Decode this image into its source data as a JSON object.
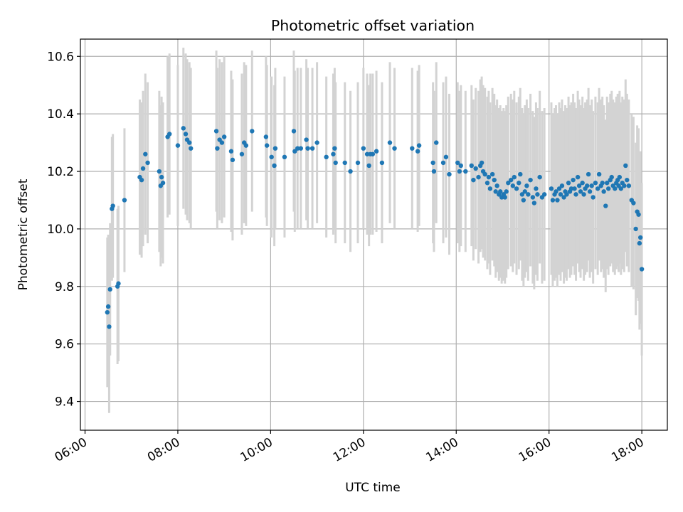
{
  "chart_data": {
    "type": "scatter",
    "title": "Photometric offset variation",
    "xlabel": "UTC time",
    "ylabel": "Photometric offset",
    "x_unit": "hours UTC",
    "xlim": [
      5.9,
      18.55
    ],
    "ylim": [
      9.3,
      10.66
    ],
    "x_ticks": [
      6,
      8,
      10,
      12,
      14,
      16,
      18
    ],
    "x_tick_labels": [
      "06:00",
      "08:00",
      "10:00",
      "12:00",
      "14:00",
      "16:00",
      "18:00"
    ],
    "y_ticks": [
      9.4,
      9.6,
      9.8,
      10.0,
      10.2,
      10.4,
      10.6
    ],
    "y_tick_labels": [
      "9.4",
      "9.6",
      "9.8",
      "10.0",
      "10.2",
      "10.4",
      "10.6"
    ],
    "grid": true,
    "legend": "none",
    "colors": {
      "points": "#1f77b4",
      "errorbars": "#d3d3d3",
      "grid": "#b0b0b0"
    },
    "series": [
      {
        "marker": "dot",
        "errorbar": true,
        "points": [
          [
            6.48,
            9.71,
            0.26
          ],
          [
            6.5,
            9.73,
            0.25
          ],
          [
            6.52,
            9.66,
            0.3
          ],
          [
            6.54,
            9.79,
            0.23
          ],
          [
            6.58,
            10.07,
            0.25
          ],
          [
            6.6,
            10.08,
            0.25
          ],
          [
            6.7,
            9.8,
            0.27
          ],
          [
            6.72,
            9.81,
            0.27
          ],
          [
            6.85,
            10.1,
            0.25
          ],
          [
            7.18,
            10.18,
            0.27
          ],
          [
            7.22,
            10.17,
            0.27
          ],
          [
            7.25,
            10.21,
            0.27
          ],
          [
            7.3,
            10.26,
            0.28
          ],
          [
            7.35,
            10.23,
            0.28
          ],
          [
            7.6,
            10.2,
            0.28
          ],
          [
            7.63,
            10.15,
            0.28
          ],
          [
            7.65,
            10.18,
            0.28
          ],
          [
            7.68,
            10.16,
            0.28
          ],
          [
            7.78,
            10.32,
            0.28
          ],
          [
            7.82,
            10.33,
            0.28
          ],
          [
            8.0,
            10.29,
            0.28
          ],
          [
            8.12,
            10.35,
            0.28
          ],
          [
            8.17,
            10.33,
            0.28
          ],
          [
            8.2,
            10.31,
            0.28
          ],
          [
            8.25,
            10.3,
            0.28
          ],
          [
            8.28,
            10.28,
            0.28
          ],
          [
            8.83,
            10.34,
            0.28
          ],
          [
            8.85,
            10.28,
            0.28
          ],
          [
            8.9,
            10.31,
            0.28
          ],
          [
            8.95,
            10.3,
            0.28
          ],
          [
            9.0,
            10.32,
            0.28
          ],
          [
            9.15,
            10.27,
            0.28
          ],
          [
            9.18,
            10.24,
            0.28
          ],
          [
            9.38,
            10.26,
            0.28
          ],
          [
            9.43,
            10.3,
            0.28
          ],
          [
            9.47,
            10.29,
            0.28
          ],
          [
            9.6,
            10.34,
            0.28
          ],
          [
            9.9,
            10.32,
            0.28
          ],
          [
            9.92,
            10.29,
            0.28
          ],
          [
            10.02,
            10.25,
            0.28
          ],
          [
            10.08,
            10.22,
            0.28
          ],
          [
            10.1,
            10.28,
            0.28
          ],
          [
            10.3,
            10.25,
            0.28
          ],
          [
            10.5,
            10.34,
            0.28
          ],
          [
            10.52,
            10.27,
            0.28
          ],
          [
            10.58,
            10.28,
            0.28
          ],
          [
            10.65,
            10.28,
            0.28
          ],
          [
            10.77,
            10.31,
            0.28
          ],
          [
            10.8,
            10.28,
            0.28
          ],
          [
            10.9,
            10.28,
            0.28
          ],
          [
            11.0,
            10.3,
            0.28
          ],
          [
            11.2,
            10.25,
            0.28
          ],
          [
            11.35,
            10.26,
            0.28
          ],
          [
            11.38,
            10.28,
            0.28
          ],
          [
            11.4,
            10.23,
            0.28
          ],
          [
            11.6,
            10.23,
            0.28
          ],
          [
            11.72,
            10.2,
            0.28
          ],
          [
            11.88,
            10.23,
            0.28
          ],
          [
            12.0,
            10.28,
            0.28
          ],
          [
            12.08,
            10.26,
            0.28
          ],
          [
            12.12,
            10.22,
            0.28
          ],
          [
            12.15,
            10.26,
            0.28
          ],
          [
            12.2,
            10.26,
            0.28
          ],
          [
            12.28,
            10.27,
            0.28
          ],
          [
            12.4,
            10.23,
            0.28
          ],
          [
            12.57,
            10.3,
            0.28
          ],
          [
            12.67,
            10.28,
            0.28
          ],
          [
            13.05,
            10.28,
            0.28
          ],
          [
            13.17,
            10.27,
            0.28
          ],
          [
            13.2,
            10.29,
            0.28
          ],
          [
            13.5,
            10.23,
            0.28
          ],
          [
            13.52,
            10.2,
            0.28
          ],
          [
            13.57,
            10.3,
            0.28
          ],
          [
            13.72,
            10.23,
            0.28
          ],
          [
            13.78,
            10.25,
            0.28
          ],
          [
            13.85,
            10.19,
            0.28
          ],
          [
            14.03,
            10.23,
            0.28
          ],
          [
            14.07,
            10.2,
            0.28
          ],
          [
            14.1,
            10.22,
            0.28
          ],
          [
            14.2,
            10.2,
            0.28
          ],
          [
            14.33,
            10.22,
            0.28
          ],
          [
            14.37,
            10.17,
            0.28
          ],
          [
            14.42,
            10.21,
            0.28
          ],
          [
            14.48,
            10.18,
            0.3
          ],
          [
            14.52,
            10.22,
            0.3
          ],
          [
            14.55,
            10.23,
            0.3
          ],
          [
            14.58,
            10.2,
            0.3
          ],
          [
            14.62,
            10.19,
            0.3
          ],
          [
            14.67,
            10.16,
            0.3
          ],
          [
            14.7,
            10.18,
            0.3
          ],
          [
            14.73,
            10.14,
            0.3
          ],
          [
            14.78,
            10.19,
            0.3
          ],
          [
            14.82,
            10.17,
            0.3
          ],
          [
            14.85,
            10.13,
            0.3
          ],
          [
            14.88,
            10.15,
            0.3
          ],
          [
            14.92,
            10.12,
            0.3
          ],
          [
            14.95,
            10.13,
            0.3
          ],
          [
            14.98,
            10.11,
            0.3
          ],
          [
            15.02,
            10.12,
            0.3
          ],
          [
            15.05,
            10.11,
            0.3
          ],
          [
            15.08,
            10.13,
            0.3
          ],
          [
            15.12,
            10.16,
            0.3
          ],
          [
            15.18,
            10.17,
            0.3
          ],
          [
            15.22,
            10.15,
            0.3
          ],
          [
            15.25,
            10.18,
            0.3
          ],
          [
            15.3,
            10.14,
            0.3
          ],
          [
            15.35,
            10.16,
            0.3
          ],
          [
            15.38,
            10.19,
            0.3
          ],
          [
            15.42,
            10.12,
            0.3
          ],
          [
            15.45,
            10.1,
            0.3
          ],
          [
            15.48,
            10.13,
            0.3
          ],
          [
            15.52,
            10.15,
            0.3
          ],
          [
            15.55,
            10.12,
            0.3
          ],
          [
            15.6,
            10.17,
            0.3
          ],
          [
            15.65,
            10.11,
            0.3
          ],
          [
            15.68,
            10.09,
            0.3
          ],
          [
            15.72,
            10.14,
            0.3
          ],
          [
            15.75,
            10.12,
            0.3
          ],
          [
            15.8,
            10.18,
            0.3
          ],
          [
            15.85,
            10.11,
            0.3
          ],
          [
            15.9,
            10.12,
            0.3
          ],
          [
            16.05,
            10.14,
            0.3
          ],
          [
            16.08,
            10.1,
            0.3
          ],
          [
            16.12,
            10.12,
            0.3
          ],
          [
            16.15,
            10.13,
            0.3
          ],
          [
            16.18,
            10.1,
            0.3
          ],
          [
            16.22,
            10.14,
            0.3
          ],
          [
            16.25,
            10.12,
            0.3
          ],
          [
            16.28,
            10.15,
            0.3
          ],
          [
            16.32,
            10.11,
            0.3
          ],
          [
            16.35,
            10.13,
            0.3
          ],
          [
            16.38,
            10.12,
            0.3
          ],
          [
            16.42,
            10.16,
            0.3
          ],
          [
            16.45,
            10.13,
            0.3
          ],
          [
            16.48,
            10.14,
            0.3
          ],
          [
            16.52,
            10.17,
            0.3
          ],
          [
            16.55,
            10.14,
            0.3
          ],
          [
            16.58,
            10.12,
            0.3
          ],
          [
            16.62,
            10.18,
            0.3
          ],
          [
            16.65,
            10.15,
            0.3
          ],
          [
            16.68,
            10.13,
            0.3
          ],
          [
            16.72,
            10.16,
            0.3
          ],
          [
            16.75,
            10.12,
            0.3
          ],
          [
            16.78,
            10.14,
            0.3
          ],
          [
            16.82,
            10.15,
            0.3
          ],
          [
            16.85,
            10.19,
            0.3
          ],
          [
            16.88,
            10.13,
            0.3
          ],
          [
            16.92,
            10.15,
            0.3
          ],
          [
            16.95,
            10.11,
            0.3
          ],
          [
            17.0,
            10.16,
            0.3
          ],
          [
            17.05,
            10.14,
            0.3
          ],
          [
            17.08,
            10.19,
            0.3
          ],
          [
            17.12,
            10.15,
            0.3
          ],
          [
            17.15,
            10.16,
            0.3
          ],
          [
            17.18,
            10.13,
            0.3
          ],
          [
            17.22,
            10.08,
            0.3
          ],
          [
            17.25,
            10.16,
            0.3
          ],
          [
            17.28,
            10.14,
            0.3
          ],
          [
            17.32,
            10.17,
            0.3
          ],
          [
            17.35,
            10.18,
            0.3
          ],
          [
            17.38,
            10.15,
            0.3
          ],
          [
            17.42,
            10.14,
            0.3
          ],
          [
            17.45,
            10.16,
            0.3
          ],
          [
            17.48,
            10.17,
            0.3
          ],
          [
            17.5,
            10.15,
            0.3
          ],
          [
            17.52,
            10.18,
            0.3
          ],
          [
            17.55,
            10.14,
            0.3
          ],
          [
            17.58,
            10.16,
            0.3
          ],
          [
            17.62,
            10.15,
            0.3
          ],
          [
            17.65,
            10.22,
            0.3
          ],
          [
            17.68,
            10.17,
            0.3
          ],
          [
            17.72,
            10.15,
            0.3
          ],
          [
            17.78,
            10.1,
            0.3
          ],
          [
            17.82,
            10.09,
            0.3
          ],
          [
            17.87,
            10.0,
            0.3
          ],
          [
            17.9,
            10.06,
            0.3
          ],
          [
            17.93,
            10.05,
            0.3
          ],
          [
            17.95,
            9.95,
            0.3
          ],
          [
            17.97,
            9.97,
            0.3
          ],
          [
            18.0,
            9.86,
            0.3
          ]
        ]
      }
    ]
  }
}
